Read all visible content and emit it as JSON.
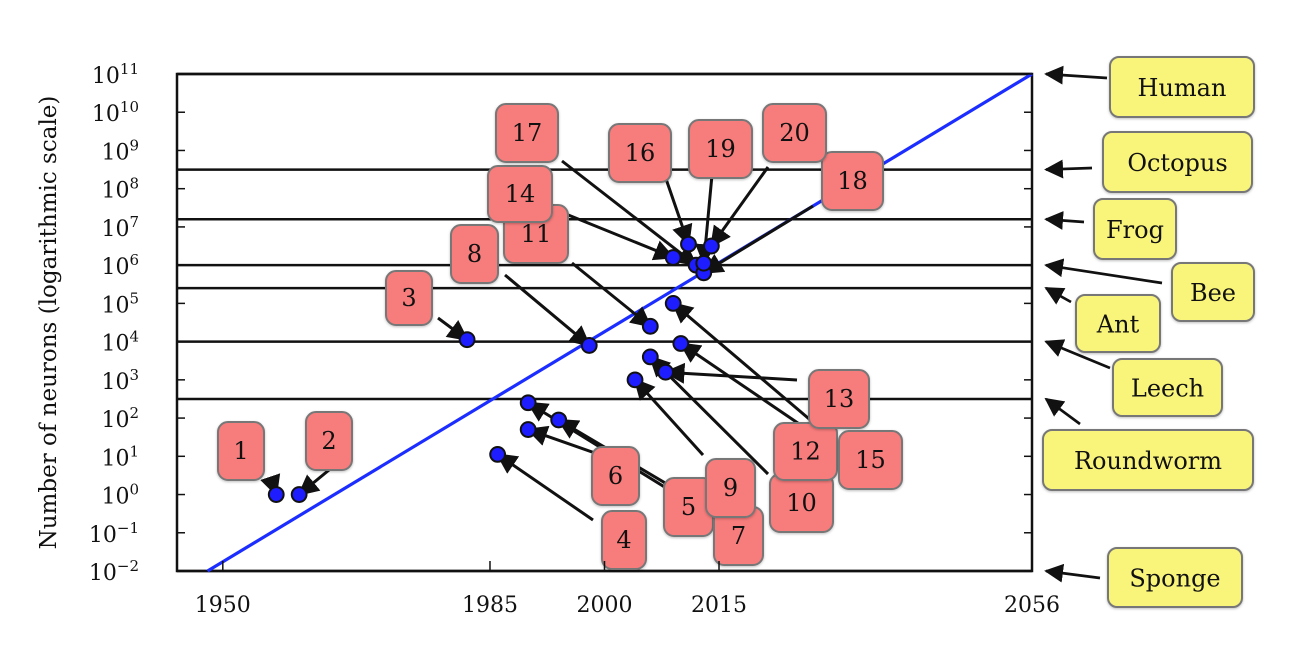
{
  "chart_data": {
    "type": "scatter",
    "title": "",
    "xlabel": "",
    "ylabel": "Number of neurons (logarithmic scale)",
    "y_scale": "log",
    "xlim": [
      1944,
      2056
    ],
    "ylim_log10": [
      -2,
      11
    ],
    "x_ticks": [
      "1950",
      "1985",
      "2000",
      "2015",
      "2056"
    ],
    "y_ticks": [
      {
        "base": "10",
        "exp": "11",
        "log10": 11
      },
      {
        "base": "10",
        "exp": "10",
        "log10": 10
      },
      {
        "base": "10",
        "exp": "9",
        "log10": 9
      },
      {
        "base": "10",
        "exp": "8",
        "log10": 8
      },
      {
        "base": "10",
        "exp": "7",
        "log10": 7
      },
      {
        "base": "10",
        "exp": "6",
        "log10": 6
      },
      {
        "base": "10",
        "exp": "5",
        "log10": 5
      },
      {
        "base": "10",
        "exp": "4",
        "log10": 4
      },
      {
        "base": "10",
        "exp": "3",
        "log10": 3
      },
      {
        "base": "10",
        "exp": "2",
        "log10": 2
      },
      {
        "base": "10",
        "exp": "1",
        "log10": 1
      },
      {
        "base": "10",
        "exp": "0",
        "log10": 0
      },
      {
        "base": "10",
        "exp": "−1",
        "log10": -1
      },
      {
        "base": "10",
        "exp": "−2",
        "log10": -2
      }
    ],
    "trend_line": {
      "x": [
        1948,
        2056
      ],
      "log10_y": [
        -2,
        11
      ]
    },
    "reference_levels": [
      {
        "name": "Human",
        "log10_y": 11
      },
      {
        "name": "Octopus",
        "log10_y": 8.5
      },
      {
        "name": "Frog",
        "log10_y": 7.2
      },
      {
        "name": "Bee",
        "log10_y": 6
      },
      {
        "name": "Ant",
        "log10_y": 5.4
      },
      {
        "name": "Leech",
        "log10_y": 4
      },
      {
        "name": "Roundworm",
        "log10_y": 2.5
      },
      {
        "name": "Sponge",
        "log10_y": -2
      }
    ],
    "points": [
      {
        "id": "1",
        "year": 1957,
        "log10_y": 0
      },
      {
        "id": "2",
        "year": 1960,
        "log10_y": 0
      },
      {
        "id": "3",
        "year": 1982,
        "log10_y": 4.05
      },
      {
        "id": "4",
        "year": 1986,
        "log10_y": 1.05
      },
      {
        "id": "5",
        "year": 1994,
        "log10_y": 1.95
      },
      {
        "id": "6",
        "year": 1990,
        "log10_y": 1.7
      },
      {
        "id": "7",
        "year": 1990,
        "log10_y": 2.4
      },
      {
        "id": "8",
        "year": 1998,
        "log10_y": 3.9
      },
      {
        "id": "9",
        "year": 2004,
        "log10_y": 3.0
      },
      {
        "id": "10",
        "year": 2006,
        "log10_y": 3.6
      },
      {
        "id": "11",
        "year": 2006,
        "log10_y": 4.4
      },
      {
        "id": "12",
        "year": 2008,
        "log10_y": 3.2
      },
      {
        "id": "13",
        "year": 2009,
        "log10_y": 5.0
      },
      {
        "id": "14",
        "year": 2009,
        "log10_y": 6.2
      },
      {
        "id": "15",
        "year": 2010,
        "log10_y": 3.95
      },
      {
        "id": "16",
        "year": 2011,
        "log10_y": 6.55
      },
      {
        "id": "17",
        "year": 2012,
        "log10_y": 6.0
      },
      {
        "id": "18",
        "year": 2013,
        "log10_y": 5.8
      },
      {
        "id": "19",
        "year": 2013,
        "log10_y": 6.05
      },
      {
        "id": "20",
        "year": 2014,
        "log10_y": 6.5
      }
    ]
  }
}
